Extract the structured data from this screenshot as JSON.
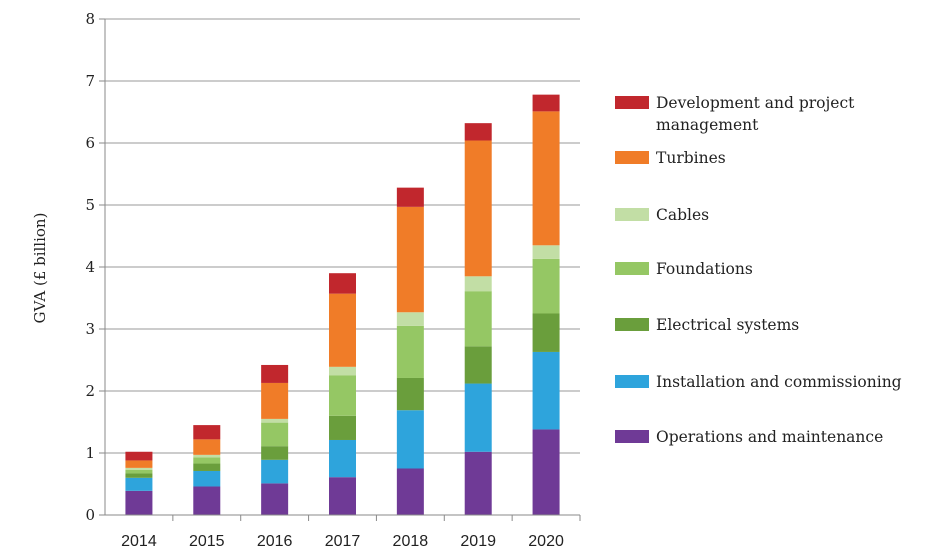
{
  "chart_data": {
    "type": "bar",
    "stacked": true,
    "categories": [
      "2014",
      "2015",
      "2016",
      "2017",
      "2018",
      "2019",
      "2020"
    ],
    "ylabel": "GVA (£ billion)",
    "ylim": [
      0,
      8
    ],
    "yticks": [
      "0",
      "1",
      "2",
      "3",
      "4",
      "5",
      "6",
      "7",
      "8"
    ],
    "grid": true,
    "legend_position": "right",
    "series": [
      {
        "name": "Operations and maintenance",
        "color": "#6f3a96",
        "values": [
          0.39,
          0.46,
          0.51,
          0.61,
          0.75,
          1.02,
          1.38
        ]
      },
      {
        "name": "Installation and commissioning",
        "color": "#2ea4dc",
        "values": [
          0.21,
          0.25,
          0.38,
          0.6,
          0.94,
          1.1,
          1.25
        ]
      },
      {
        "name": "Electrical systems",
        "color": "#6a9e3c",
        "values": [
          0.07,
          0.12,
          0.22,
          0.39,
          0.52,
          0.6,
          0.62
        ]
      },
      {
        "name": "Foundations",
        "color": "#95c764",
        "values": [
          0.06,
          0.1,
          0.38,
          0.65,
          0.84,
          0.89,
          0.88
        ]
      },
      {
        "name": "Cables",
        "color": "#c2dea5",
        "values": [
          0.03,
          0.04,
          0.06,
          0.14,
          0.22,
          0.24,
          0.22
        ]
      },
      {
        "name": "Turbines",
        "color": "#f07c28",
        "values": [
          0.12,
          0.25,
          0.58,
          1.18,
          1.7,
          2.19,
          2.16
        ]
      },
      {
        "name": "Development and project management",
        "color": "#c1272d",
        "values": [
          0.14,
          0.23,
          0.29,
          0.33,
          0.31,
          0.28,
          0.27
        ]
      }
    ],
    "legend_order": [
      [
        "Development and project",
        "management"
      ],
      [
        "Turbines"
      ],
      [
        "Cables"
      ],
      [
        "Foundations"
      ],
      [
        "Electrical systems"
      ],
      [
        "Installation and commissioning"
      ],
      [
        "Operations and maintenance"
      ]
    ],
    "legend_colors": [
      "#c1272d",
      "#f07c28",
      "#c2dea5",
      "#95c764",
      "#6a9e3c",
      "#2ea4dc",
      "#6f3a96"
    ]
  }
}
